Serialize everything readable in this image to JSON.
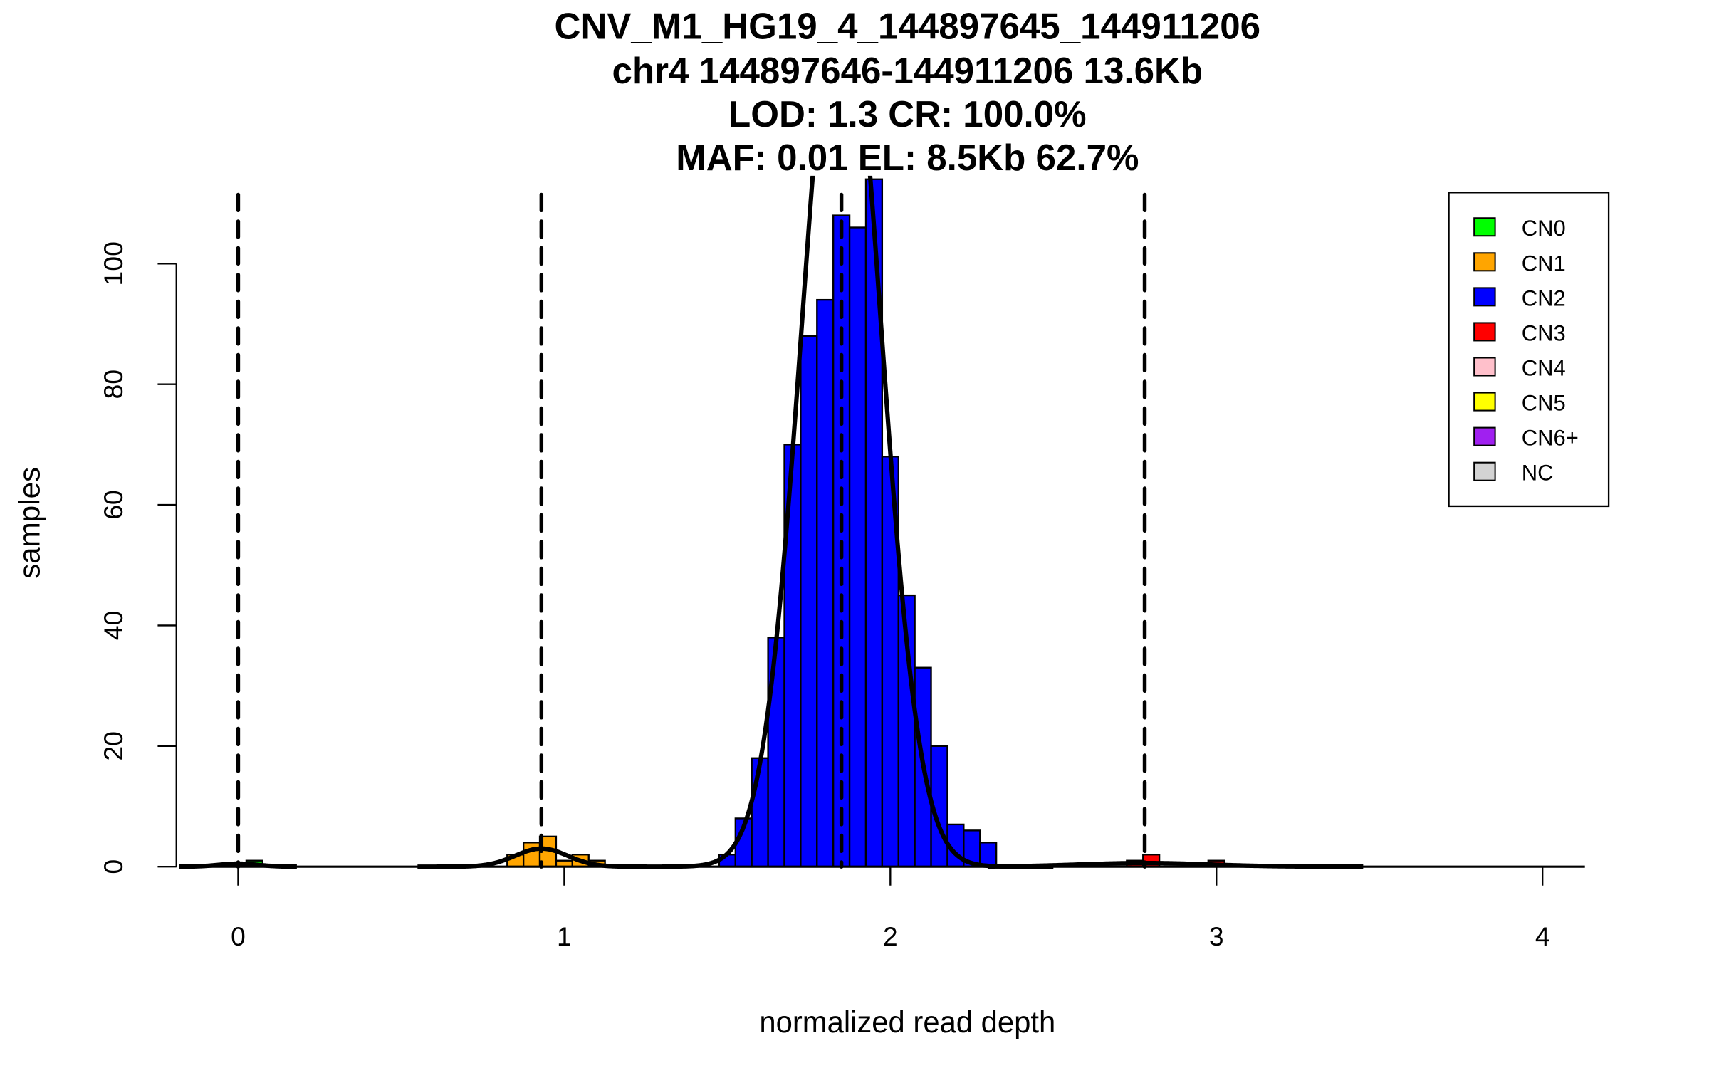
{
  "chart_data": {
    "type": "bar",
    "title_lines": [
      "CNV_M1_HG19_4_144897645_144911206",
      "chr4 144897646-144911206 13.6Kb",
      "LOD: 1.3 CR: 100.0%",
      "MAF: 0.01 EL: 8.5Kb 62.7%"
    ],
    "xlabel": "normalized read depth",
    "ylabel": "samples",
    "xlim": [
      -0.18,
      4.13
    ],
    "ylim": [
      0,
      114
    ],
    "x_ticks": [
      0,
      1,
      2,
      3,
      4
    ],
    "y_ticks": [
      0,
      20,
      40,
      60,
      80,
      100
    ],
    "bin_width": 0.05,
    "series": [
      {
        "name": "CN0",
        "color": "#00ff00",
        "bin_starts": [
          0.025
        ],
        "counts": [
          1
        ]
      },
      {
        "name": "CN1",
        "color": "#ffa500",
        "bin_starts": [
          0.825,
          0.875,
          0.925,
          0.975,
          1.025,
          1.075
        ],
        "counts": [
          2,
          4,
          5,
          1,
          2,
          1
        ]
      },
      {
        "name": "CN2",
        "color": "#0000ff",
        "bin_starts": [
          1.475,
          1.525,
          1.575,
          1.625,
          1.675,
          1.725,
          1.775,
          1.825,
          1.875,
          1.925,
          1.975,
          2.025,
          2.075,
          2.125,
          2.175,
          2.225,
          2.275
        ],
        "counts": [
          2,
          8,
          18,
          38,
          70,
          88,
          94,
          108,
          106,
          114,
          68,
          45,
          33,
          20,
          7,
          6,
          4
        ]
      },
      {
        "name": "CN3",
        "color": "#ff0000",
        "bin_starts": [
          2.725,
          2.775,
          2.975
        ],
        "counts": [
          1,
          2,
          1
        ]
      }
    ],
    "cutoffs": [
      0,
      0.93,
      1.85,
      2.78
    ],
    "fit_components": [
      {
        "name": "CN0",
        "mean": 0,
        "sd": 0.06,
        "peak": 0.5,
        "range": [
          -0.18,
          0.18
        ]
      },
      {
        "name": "CN1",
        "mean": 0.93,
        "sd": 0.08,
        "peak": 3,
        "range": [
          0.55,
          1.3
        ]
      },
      {
        "name": "CN2",
        "mean": 1.85,
        "sd": 0.12,
        "peak": 150,
        "range": [
          1.3,
          2.5
        ]
      },
      {
        "name": "CN3",
        "mean": 2.78,
        "sd": 0.2,
        "peak": 0.6,
        "range": [
          2.3,
          3.45
        ]
      }
    ],
    "legend": {
      "placement": "top-right",
      "entries": [
        {
          "label": "CN0",
          "color": "#00ff00"
        },
        {
          "label": "CN1",
          "color": "#ffa500"
        },
        {
          "label": "CN2",
          "color": "#0000ff"
        },
        {
          "label": "CN3",
          "color": "#ff0000"
        },
        {
          "label": "CN4",
          "color": "#ffc0cb"
        },
        {
          "label": "CN5",
          "color": "#ffff00"
        },
        {
          "label": "CN6+",
          "color": "#a020f0"
        },
        {
          "label": "NC",
          "color": "#d3d3d3"
        }
      ]
    }
  }
}
